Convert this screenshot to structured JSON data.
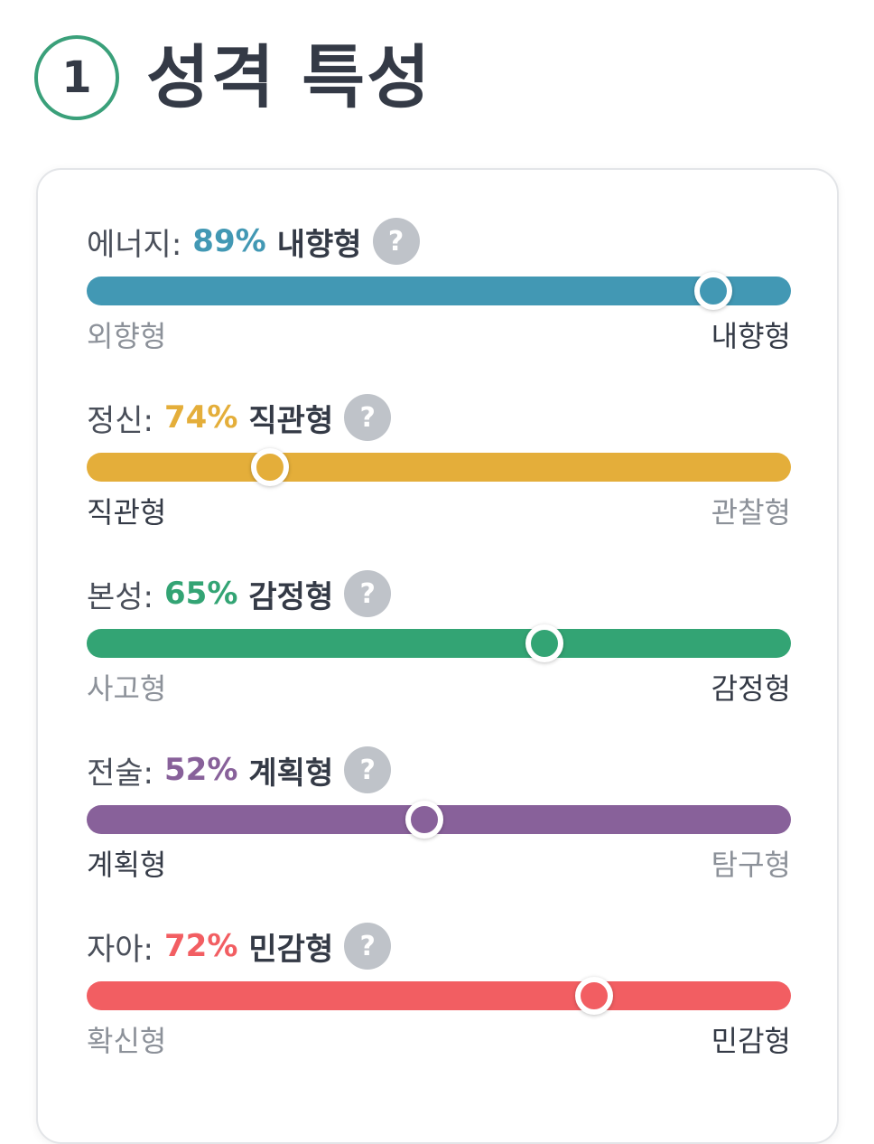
{
  "section": {
    "number": "1",
    "title": "성격 특성"
  },
  "help_icon_glyph": "?",
  "traits": [
    {
      "name": "에너지:",
      "percent_label": "89%",
      "result": "내향형",
      "percent": 89,
      "color": "#4298b4",
      "left_label": "외향형",
      "right_label": "내향형",
      "dominant": "right"
    },
    {
      "name": "정신:",
      "percent_label": "74%",
      "result": "직관형",
      "percent": 74,
      "color": "#e4ae3a",
      "left_label": "직관형",
      "right_label": "관찰형",
      "dominant": "left"
    },
    {
      "name": "본성:",
      "percent_label": "65%",
      "result": "감정형",
      "percent": 65,
      "color": "#33a474",
      "left_label": "사고형",
      "right_label": "감정형",
      "dominant": "right"
    },
    {
      "name": "전술:",
      "percent_label": "52%",
      "result": "계획형",
      "percent": 52,
      "color": "#88619a",
      "left_label": "계획형",
      "right_label": "탐구형",
      "dominant": "left"
    },
    {
      "name": "자아:",
      "percent_label": "72%",
      "result": "민감형",
      "percent": 72,
      "color": "#f25e62",
      "left_label": "확신형",
      "right_label": "민감형",
      "dominant": "right"
    }
  ]
}
